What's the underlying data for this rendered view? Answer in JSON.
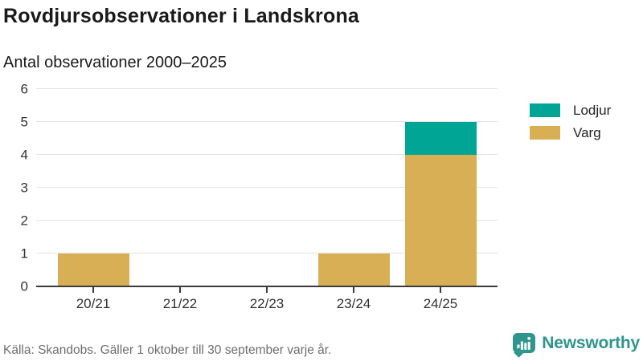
{
  "header": {
    "title": "Rovdjursobservationer i Landskrona",
    "subtitle": "Antal observationer 2000–2025"
  },
  "chart_data": {
    "type": "bar",
    "stacked": true,
    "title": "Rovdjursobservationer i Landskrona",
    "subtitle": "Antal observationer 2000–2025",
    "categories": [
      "20/21",
      "21/22",
      "22/23",
      "23/24",
      "24/25"
    ],
    "series": [
      {
        "name": "Lodjur",
        "color": "#00A596",
        "values": [
          0,
          0,
          0,
          0,
          1
        ]
      },
      {
        "name": "Varg",
        "color": "#D9AF56",
        "values": [
          1,
          0,
          0,
          1,
          4
        ]
      }
    ],
    "xlabel": "",
    "ylabel": "",
    "ylim": [
      0,
      6
    ],
    "yticks": [
      0,
      1,
      2,
      3,
      4,
      5,
      6
    ],
    "grid": true,
    "legend_position": "right"
  },
  "footer": {
    "source": "Källa: Skandobs. Gäller 1 oktober till 30 september varje år.",
    "brand": "Newsworthy",
    "brand_color": "#2F968D"
  }
}
